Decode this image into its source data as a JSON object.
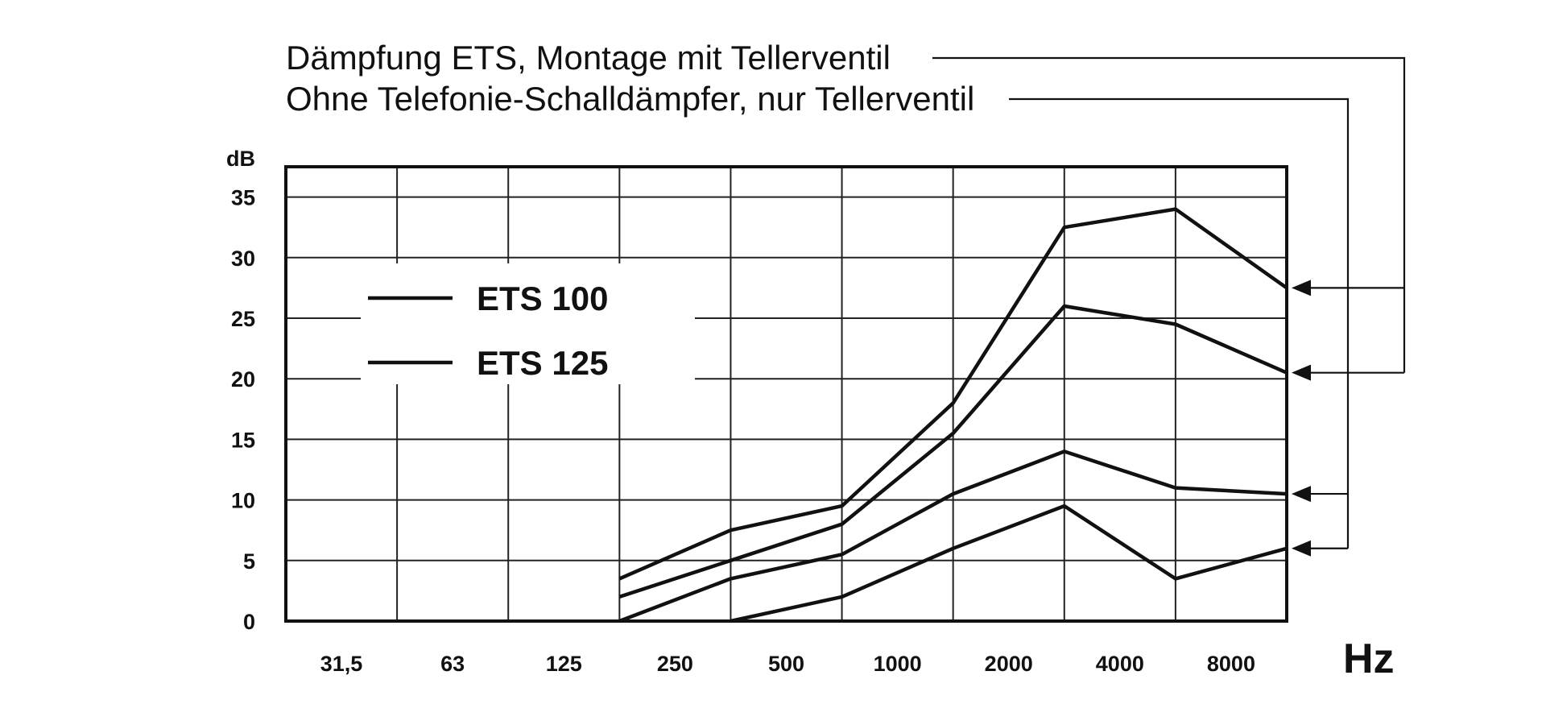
{
  "chart_data": {
    "type": "line",
    "title_lines": [
      "Dämpfung ETS, Montage mit Tellerventil",
      "Ohne Telefonie-Schalldämpfer, nur Tellerventil"
    ],
    "categories": [
      "31,5",
      "63",
      "125",
      "250",
      "500",
      "1000",
      "2000",
      "4000",
      "8000"
    ],
    "xlabel": "Hz",
    "ylabel": "dB",
    "yticks": [
      0,
      5,
      10,
      15,
      20,
      25,
      30,
      35
    ],
    "ylim": [
      0,
      37.5
    ],
    "grid": true,
    "legend": [
      {
        "name": "ETS 100"
      },
      {
        "name": "ETS 125"
      }
    ],
    "series": [
      {
        "group": "Dämpfung ETS, Montage mit Tellerventil",
        "legend_ref": "ETS 100",
        "x": [
          "125",
          "250",
          "500",
          "1000",
          "2000",
          "4000",
          "8000"
        ],
        "values": [
          3.5,
          7.5,
          9.5,
          18,
          32.5,
          34,
          27.5
        ]
      },
      {
        "group": "Dämpfung ETS, Montage mit Tellerventil",
        "legend_ref": "ETS 125",
        "x": [
          "125",
          "250",
          "500",
          "1000",
          "2000",
          "4000",
          "8000"
        ],
        "values": [
          2,
          5,
          8,
          15.5,
          26,
          24.5,
          20.5
        ]
      },
      {
        "group": "Ohne Telefonie-Schalldämpfer, nur Tellerventil",
        "legend_ref": "ETS 100",
        "x": [
          "125",
          "250",
          "500",
          "1000",
          "2000",
          "4000",
          "8000"
        ],
        "values": [
          0,
          3.5,
          5.5,
          10.5,
          14,
          11,
          10.5
        ]
      },
      {
        "group": "Ohne Telefonie-Schalldämpfer, nur Tellerventil",
        "legend_ref": "ETS 125",
        "x": [
          "250",
          "500",
          "1000",
          "2000",
          "4000",
          "8000"
        ],
        "values": [
          0,
          2,
          6,
          9.5,
          3.5,
          6
        ]
      }
    ]
  }
}
